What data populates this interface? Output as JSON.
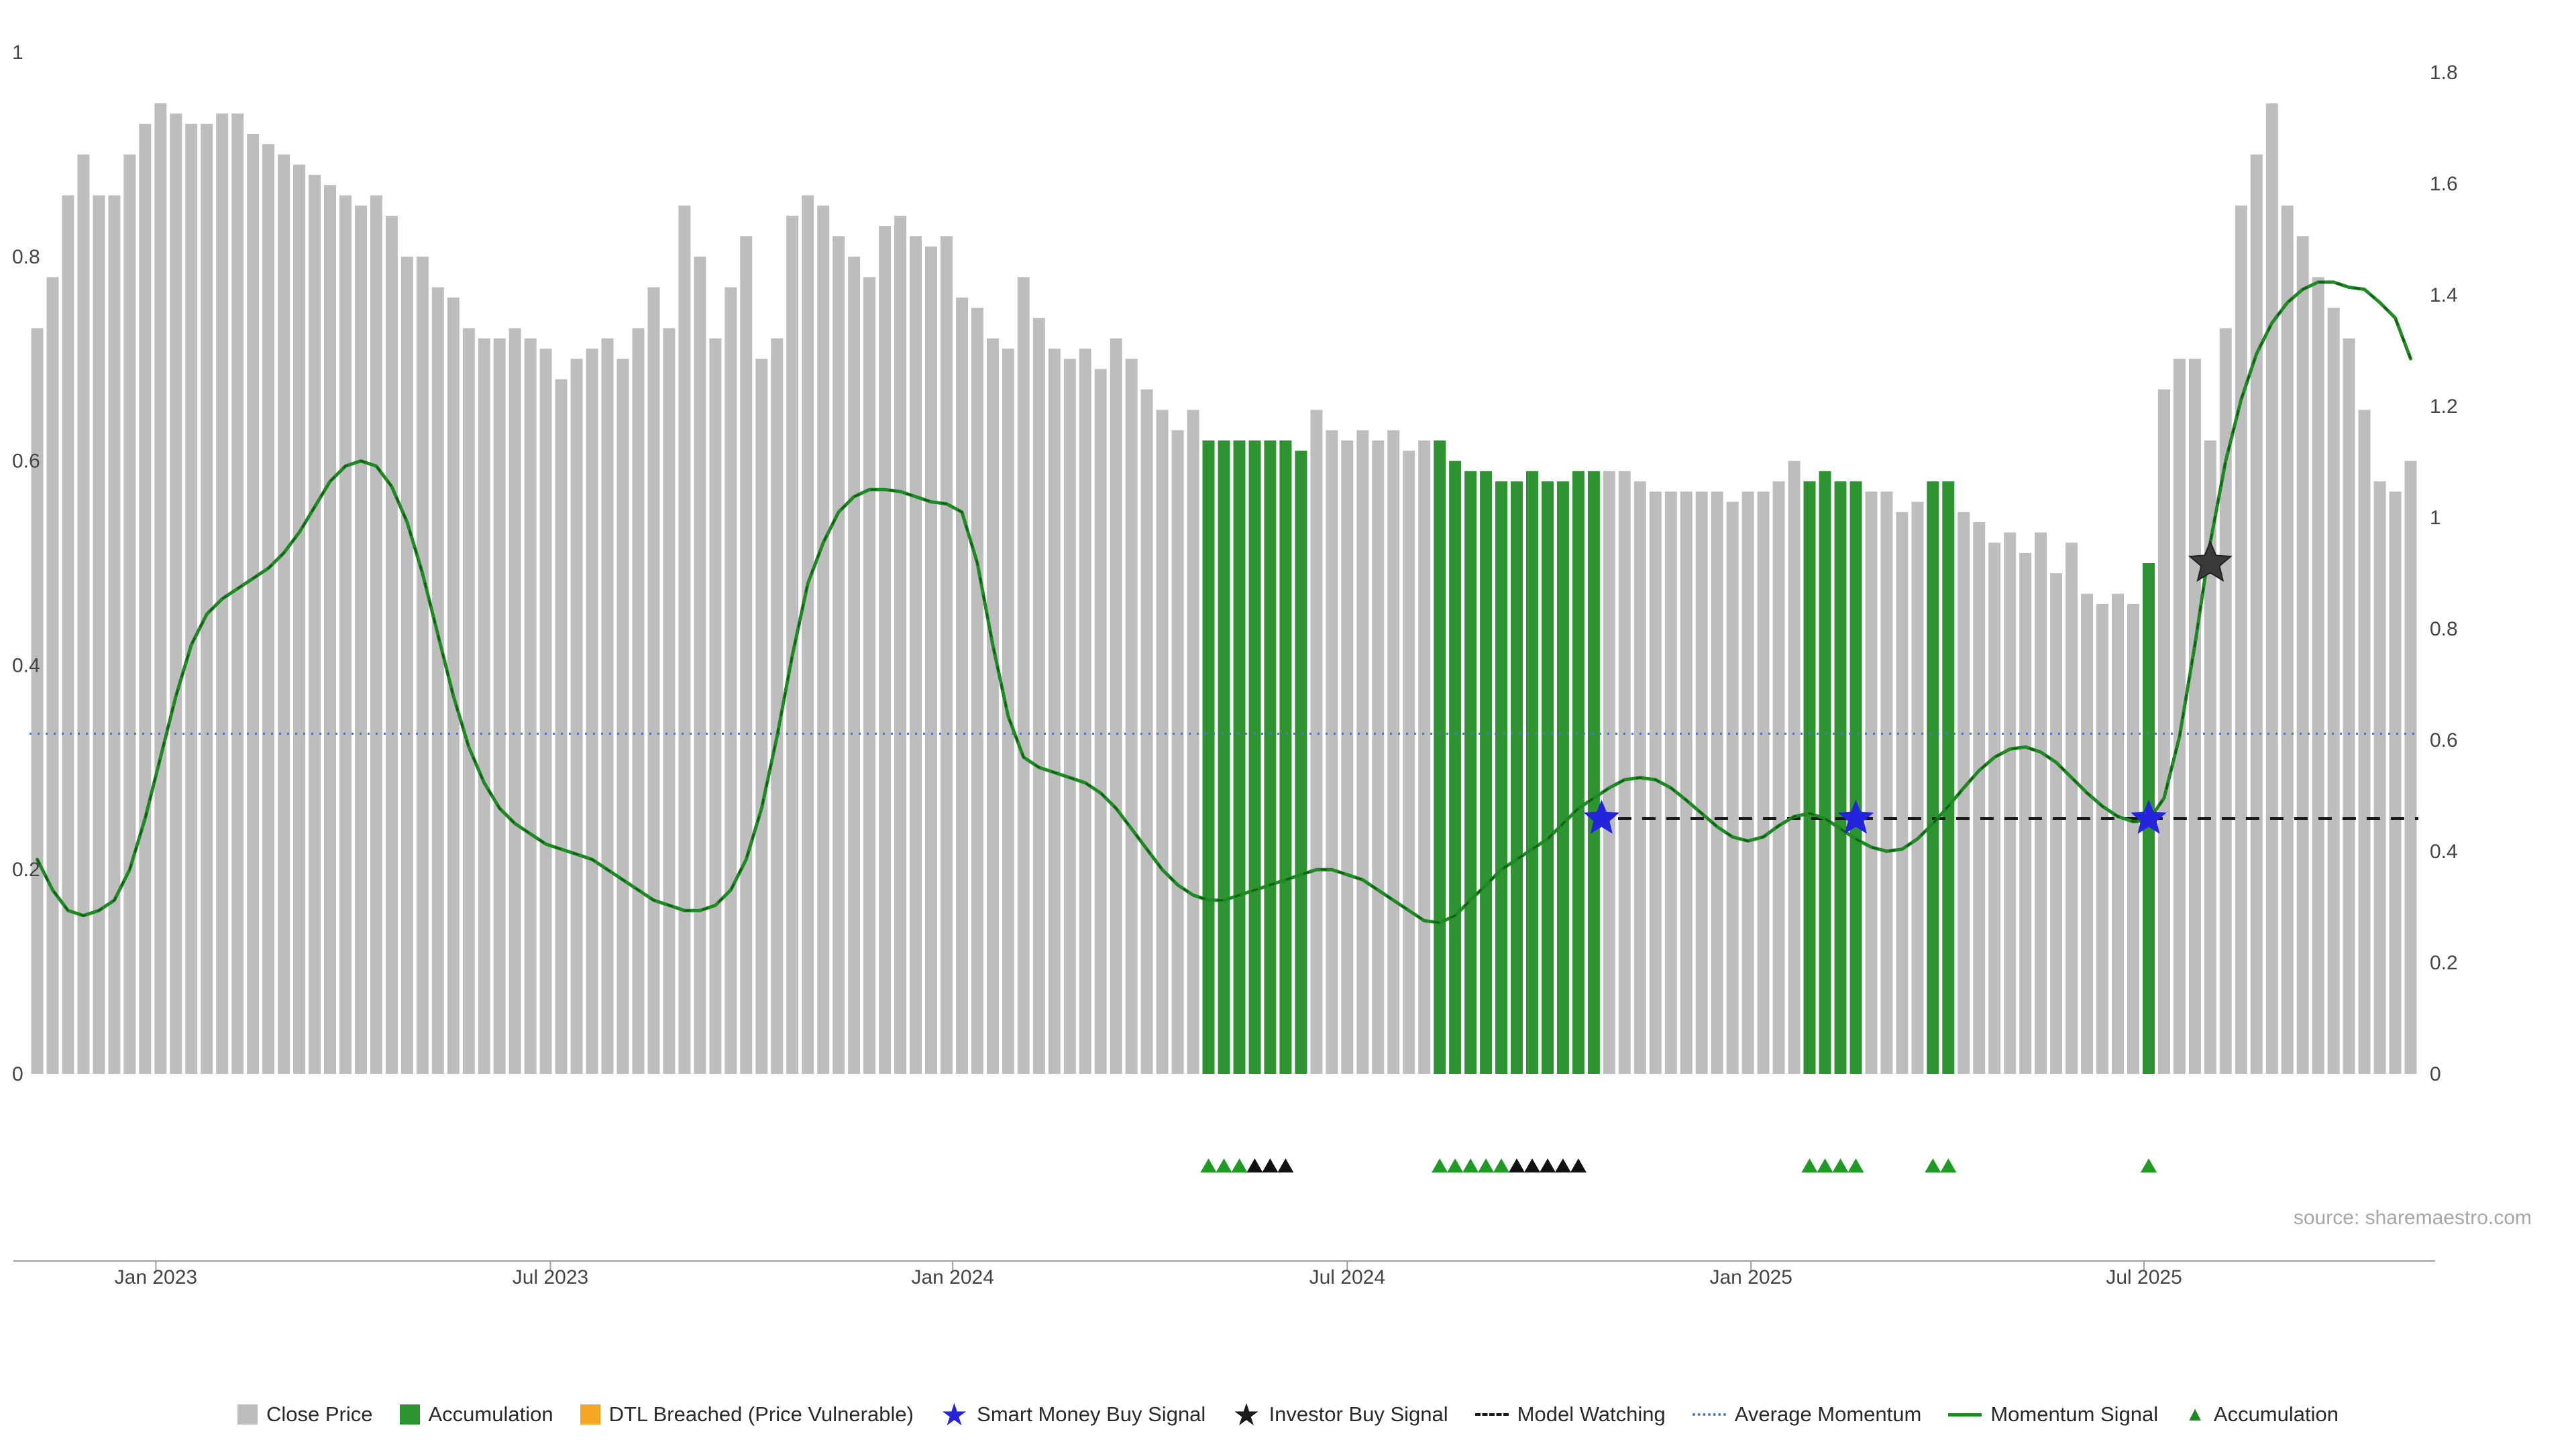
{
  "page": {
    "source_text": "source: sharemaestro.com"
  },
  "chart_data": {
    "type": "bar",
    "description": "Weekly close-price bars with momentum signal line, accumulation highlighting and buy-signal markers",
    "left_axis": {
      "range": [
        0,
        1
      ],
      "ticks": [
        {
          "label": "0",
          "value": 0
        },
        {
          "label": "0.2",
          "value": 0.2
        },
        {
          "label": "0.4",
          "value": 0.4
        },
        {
          "label": "0.6",
          "value": 0.6
        },
        {
          "label": "0.8",
          "value": 0.8
        },
        {
          "label": "1",
          "value": 1
        }
      ]
    },
    "right_axis": {
      "range": [
        0,
        1.8
      ],
      "ticks": [
        {
          "label": "0",
          "value": 0
        },
        {
          "label": "0.2",
          "value": 0.2
        },
        {
          "label": "0.4",
          "value": 0.4
        },
        {
          "label": "0.6",
          "value": 0.6
        },
        {
          "label": "0.8",
          "value": 0.8
        },
        {
          "label": "1",
          "value": 1
        },
        {
          "label": "1.2",
          "value": 1.2
        },
        {
          "label": "1.4",
          "value": 1.4
        },
        {
          "label": "1.6",
          "value": 1.6
        },
        {
          "label": "1.8",
          "value": 1.8
        }
      ]
    },
    "x_ticks": [
      {
        "label": "Jan 2023",
        "index": 8.2
      },
      {
        "label": "Jul 2023",
        "index": 33.8
      },
      {
        "label": "Jan 2024",
        "index": 59.9
      },
      {
        "label": "Jul 2024",
        "index": 85.5
      },
      {
        "label": "Jan 2025",
        "index": 111.7
      },
      {
        "label": "Jul 2025",
        "index": 137.2
      }
    ],
    "close_price": {
      "name": "Close Price",
      "values": [
        0.73,
        0.78,
        0.86,
        0.9,
        0.86,
        0.86,
        0.9,
        0.93,
        0.95,
        0.94,
        0.93,
        0.93,
        0.94,
        0.94,
        0.92,
        0.91,
        0.9,
        0.89,
        0.88,
        0.87,
        0.86,
        0.85,
        0.86,
        0.84,
        0.8,
        0.8,
        0.77,
        0.76,
        0.73,
        0.72,
        0.72,
        0.73,
        0.72,
        0.71,
        0.68,
        0.7,
        0.71,
        0.72,
        0.7,
        0.73,
        0.77,
        0.73,
        0.85,
        0.8,
        0.72,
        0.77,
        0.82,
        0.7,
        0.72,
        0.84,
        0.86,
        0.85,
        0.82,
        0.8,
        0.78,
        0.83,
        0.84,
        0.82,
        0.81,
        0.82,
        0.76,
        0.75,
        0.72,
        0.71,
        0.78,
        0.74,
        0.71,
        0.7,
        0.71,
        0.69,
        0.72,
        0.7,
        0.67,
        0.65,
        0.63,
        0.65,
        0.62,
        0.62,
        0.62,
        0.62,
        0.62,
        0.62,
        0.61,
        0.65,
        0.63,
        0.62,
        0.63,
        0.62,
        0.63,
        0.61,
        0.62,
        0.62,
        0.6,
        0.59,
        0.59,
        0.58,
        0.58,
        0.59,
        0.58,
        0.58,
        0.59,
        0.59,
        0.59,
        0.59,
        0.58,
        0.57,
        0.57,
        0.57,
        0.57,
        0.57,
        0.56,
        0.57,
        0.57,
        0.58,
        0.6,
        0.58,
        0.59,
        0.58,
        0.58,
        0.57,
        0.57,
        0.55,
        0.56,
        0.58,
        0.58,
        0.55,
        0.54,
        0.52,
        0.53,
        0.51,
        0.53,
        0.49,
        0.52,
        0.47,
        0.46,
        0.47,
        0.46,
        0.5,
        0.67,
        0.7,
        0.7,
        0.62,
        0.73,
        0.85,
        0.9,
        0.95,
        0.85,
        0.82,
        0.78,
        0.75,
        0.72,
        0.65,
        0.58,
        0.57,
        0.6
      ]
    },
    "accumulation_bar_indices": [
      76,
      77,
      78,
      79,
      80,
      81,
      82,
      91,
      92,
      93,
      94,
      95,
      96,
      97,
      98,
      99,
      100,
      101,
      115,
      116,
      117,
      118,
      123,
      124,
      137
    ],
    "momentum_signal": {
      "name": "Momentum Signal",
      "values": [
        0.21,
        0.18,
        0.16,
        0.155,
        0.16,
        0.17,
        0.2,
        0.25,
        0.31,
        0.37,
        0.42,
        0.45,
        0.465,
        0.475,
        0.485,
        0.495,
        0.51,
        0.53,
        0.555,
        0.58,
        0.595,
        0.6,
        0.595,
        0.575,
        0.54,
        0.49,
        0.43,
        0.37,
        0.32,
        0.285,
        0.26,
        0.245,
        0.235,
        0.225,
        0.22,
        0.215,
        0.21,
        0.2,
        0.19,
        0.18,
        0.17,
        0.165,
        0.16,
        0.16,
        0.165,
        0.18,
        0.21,
        0.26,
        0.33,
        0.41,
        0.48,
        0.52,
        0.55,
        0.565,
        0.572,
        0.572,
        0.57,
        0.565,
        0.56,
        0.558,
        0.55,
        0.5,
        0.42,
        0.35,
        0.31,
        0.3,
        0.295,
        0.29,
        0.285,
        0.275,
        0.26,
        0.24,
        0.22,
        0.2,
        0.185,
        0.175,
        0.17,
        0.17,
        0.175,
        0.18,
        0.185,
        0.19,
        0.195,
        0.2,
        0.2,
        0.195,
        0.19,
        0.18,
        0.17,
        0.16,
        0.15,
        0.148,
        0.155,
        0.17,
        0.185,
        0.2,
        0.21,
        0.22,
        0.23,
        0.245,
        0.26,
        0.27,
        0.28,
        0.288,
        0.29,
        0.288,
        0.28,
        0.268,
        0.255,
        0.242,
        0.232,
        0.228,
        0.232,
        0.243,
        0.252,
        0.255,
        0.25,
        0.24,
        0.23,
        0.222,
        0.218,
        0.22,
        0.23,
        0.245,
        0.262,
        0.28,
        0.297,
        0.31,
        0.318,
        0.32,
        0.315,
        0.305,
        0.29,
        0.275,
        0.262,
        0.252,
        0.247,
        0.248,
        0.27,
        0.33,
        0.42,
        0.52,
        0.6,
        0.66,
        0.705,
        0.735,
        0.755,
        0.768,
        0.775,
        0.775,
        0.77,
        0.768,
        0.755,
        0.74,
        0.7
      ]
    },
    "average_momentum": {
      "name": "Average Momentum",
      "value": 0.333
    },
    "model_watching": {
      "name": "Model Watching",
      "value": 0.25,
      "start_index": 101
    },
    "smart_money_buy_signals": [
      {
        "index": 101.5,
        "value": 0.25
      },
      {
        "index": 118,
        "value": 0.25
      },
      {
        "index": 137,
        "value": 0.25
      }
    ],
    "investor_buy_signals": [
      {
        "index": 141,
        "value": 0.5
      }
    ],
    "accumulation_markers_green": [
      76,
      77,
      78,
      91,
      92,
      93,
      94,
      95,
      115,
      116,
      117,
      118,
      123,
      124,
      137
    ],
    "accumulation_markers_black": [
      79,
      80,
      81,
      96,
      97,
      98,
      99,
      100
    ],
    "colors": {
      "close_price_bar": "#bdbdbd",
      "accumulation_bar": "#2e9431",
      "dtl_breached": "#f5a623",
      "momentum_line": "#1f8a24",
      "momentum_dash_overlay": "#0d5c12",
      "average_momentum_line": "#4b79bd",
      "model_watching_line": "#1a1a1a",
      "smart_money_star": "#2424dd",
      "investor_star": "#3a3a3a",
      "marker_green": "#1f9a24",
      "marker_black": "#111111",
      "axis_line": "#9e9e9e",
      "axis_text": "#444444"
    }
  },
  "legend": {
    "items": [
      {
        "label": "Close Price",
        "swatch": "square",
        "color": "#bdbdbd"
      },
      {
        "label": "Accumulation",
        "swatch": "square",
        "color": "#2e9431"
      },
      {
        "label": "DTL Breached (Price Vulnerable)",
        "swatch": "square",
        "color": "#f5a623"
      },
      {
        "label": "Smart Money Buy Signal",
        "swatch": "star",
        "color": "#2424dd"
      },
      {
        "label": "Investor Buy Signal",
        "swatch": "star",
        "color": "#1a1a1a"
      },
      {
        "label": "Model Watching",
        "swatch": "dashed-line",
        "color": "#1a1a1a"
      },
      {
        "label": "Average Momentum",
        "swatch": "dotted-line",
        "color": "#4b79bd"
      },
      {
        "label": "Momentum Signal",
        "swatch": "solid-line",
        "color": "#1f8a24"
      },
      {
        "label": "Accumulation",
        "swatch": "triangle",
        "color": "#1f8a24"
      }
    ]
  }
}
